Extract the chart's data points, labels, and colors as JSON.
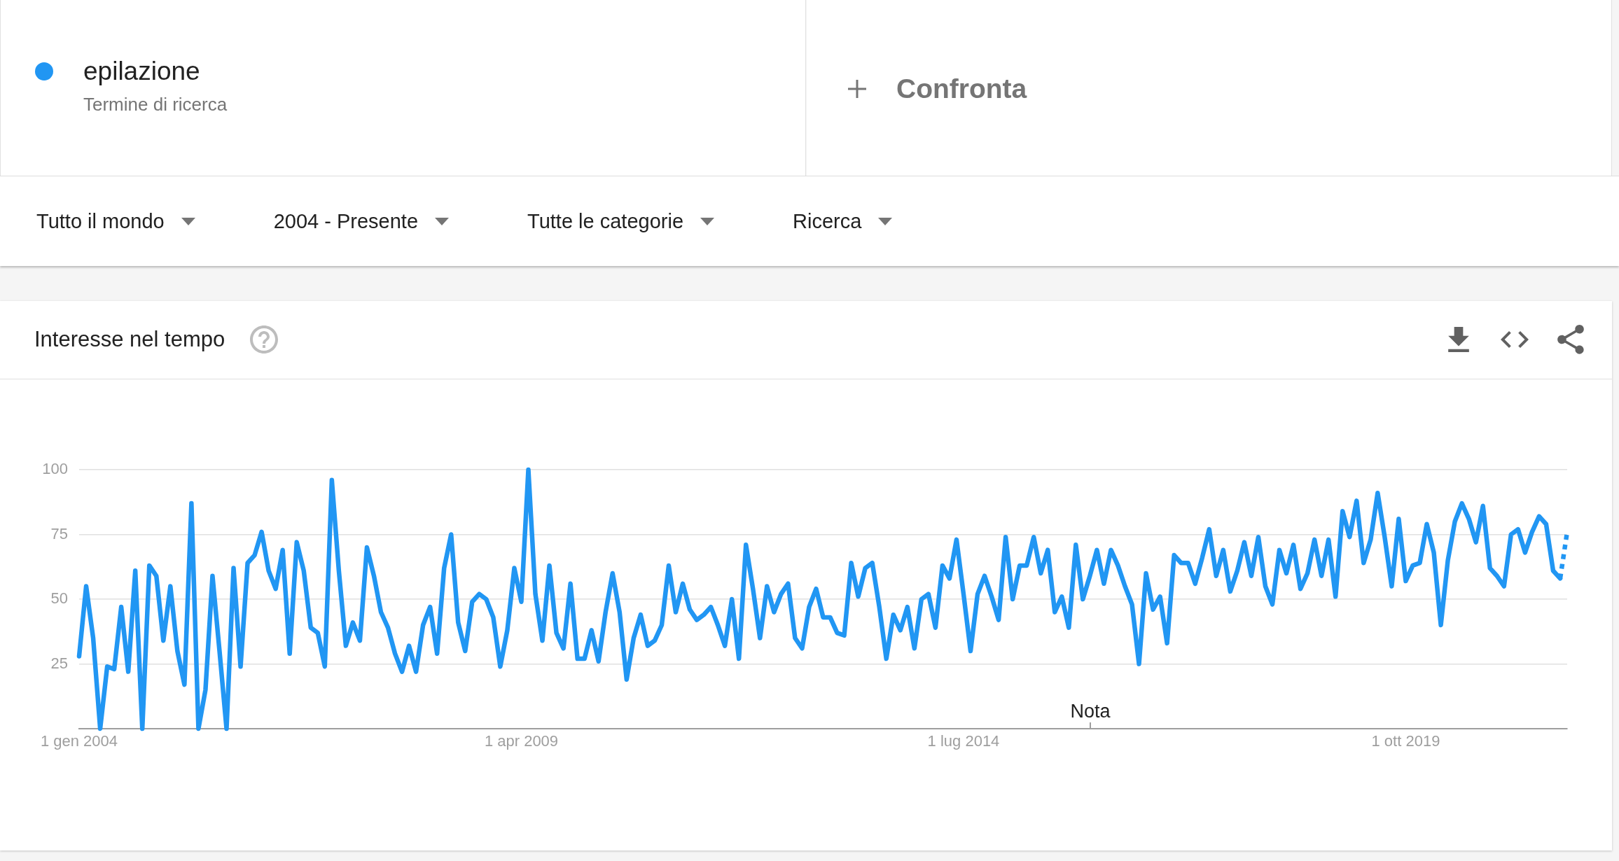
{
  "chart_data": {
    "type": "line",
    "title": "Interesse nel tempo",
    "series": [
      {
        "name": "epilazione",
        "color": "#2196f3",
        "x": [
          "2004-01",
          "2004-02",
          "2004-03",
          "2004-04",
          "2004-05",
          "2004-06",
          "2004-07",
          "2004-08",
          "2004-09",
          "2004-10",
          "2004-11",
          "2004-12",
          "2005-01",
          "2005-02",
          "2005-03",
          "2005-04",
          "2005-05",
          "2005-06",
          "2005-07",
          "2005-08",
          "2005-09",
          "2005-10",
          "2005-11",
          "2005-12",
          "2006-01",
          "2006-02",
          "2006-03",
          "2006-04",
          "2006-05",
          "2006-06",
          "2006-07",
          "2006-08",
          "2006-09",
          "2006-10",
          "2006-11",
          "2006-12",
          "2007-01",
          "2007-02",
          "2007-03",
          "2007-04",
          "2007-05",
          "2007-06",
          "2007-07",
          "2007-08",
          "2007-09",
          "2007-10",
          "2007-11",
          "2007-12",
          "2008-01",
          "2008-02",
          "2008-03",
          "2008-04",
          "2008-05",
          "2008-06",
          "2008-07",
          "2008-08",
          "2008-09",
          "2008-10",
          "2008-11",
          "2008-12",
          "2009-01",
          "2009-02",
          "2009-03",
          "2009-04",
          "2009-05",
          "2009-06",
          "2009-07",
          "2009-08",
          "2009-09",
          "2009-10",
          "2009-11",
          "2009-12",
          "2010-01",
          "2010-02",
          "2010-03",
          "2010-04",
          "2010-05",
          "2010-06",
          "2010-07",
          "2010-08",
          "2010-09",
          "2010-10",
          "2010-11",
          "2010-12",
          "2011-01",
          "2011-02",
          "2011-03",
          "2011-04",
          "2011-05",
          "2011-06",
          "2011-07",
          "2011-08",
          "2011-09",
          "2011-10",
          "2011-11",
          "2011-12",
          "2012-01",
          "2012-02",
          "2012-03",
          "2012-04",
          "2012-05",
          "2012-06",
          "2012-07",
          "2012-08",
          "2012-09",
          "2012-10",
          "2012-11",
          "2012-12",
          "2013-01",
          "2013-02",
          "2013-03",
          "2013-04",
          "2013-05",
          "2013-06",
          "2013-07",
          "2013-08",
          "2013-09",
          "2013-10",
          "2013-11",
          "2013-12",
          "2014-01",
          "2014-02",
          "2014-03",
          "2014-04",
          "2014-05",
          "2014-06",
          "2014-07",
          "2014-08",
          "2014-09",
          "2014-10",
          "2014-11",
          "2014-12",
          "2015-01",
          "2015-02",
          "2015-03",
          "2015-04",
          "2015-05",
          "2015-06",
          "2015-07",
          "2015-08",
          "2015-09",
          "2015-10",
          "2015-11",
          "2015-12",
          "2016-01",
          "2016-02",
          "2016-03",
          "2016-04",
          "2016-05",
          "2016-06",
          "2016-07",
          "2016-08",
          "2016-09",
          "2016-10",
          "2016-11",
          "2016-12",
          "2017-01",
          "2017-02",
          "2017-03",
          "2017-04",
          "2017-05",
          "2017-06",
          "2017-07",
          "2017-08",
          "2017-09",
          "2017-10",
          "2017-11",
          "2017-12",
          "2018-01",
          "2018-02",
          "2018-03",
          "2018-04",
          "2018-05",
          "2018-06",
          "2018-07",
          "2018-08",
          "2018-09",
          "2018-10",
          "2018-11",
          "2018-12",
          "2019-01",
          "2019-02",
          "2019-03",
          "2019-04",
          "2019-05",
          "2019-06",
          "2019-07",
          "2019-08",
          "2019-09",
          "2019-10",
          "2019-11",
          "2019-12",
          "2020-01",
          "2020-02",
          "2020-03",
          "2020-04",
          "2020-05",
          "2020-06",
          "2020-07",
          "2020-08",
          "2020-09",
          "2020-10",
          "2020-11",
          "2020-12",
          "2021-01",
          "2021-02",
          "2021-03",
          "2021-04",
          "2021-05",
          "2021-06",
          "2021-07",
          "2021-08"
        ],
        "values": [
          28,
          55,
          35,
          0,
          24,
          23,
          47,
          22,
          61,
          0,
          63,
          59,
          34,
          55,
          30,
          17,
          87,
          0,
          15,
          59,
          30,
          0,
          62,
          24,
          64,
          67,
          76,
          61,
          54,
          69,
          29,
          72,
          61,
          39,
          37,
          24,
          96,
          61,
          32,
          41,
          34,
          70,
          59,
          45,
          39,
          29,
          22,
          32,
          22,
          40,
          47,
          29,
          62,
          75,
          41,
          30,
          49,
          52,
          50,
          43,
          24,
          38,
          62,
          49,
          100,
          52,
          34,
          63,
          37,
          31,
          56,
          27,
          27,
          38,
          26,
          45,
          60,
          45,
          19,
          35,
          44,
          32,
          34,
          40,
          63,
          45,
          56,
          46,
          42,
          44,
          47,
          40,
          32,
          50,
          27,
          71,
          54,
          35,
          55,
          45,
          52,
          56,
          35,
          31,
          47,
          54,
          43,
          43,
          37,
          36,
          64,
          51,
          62,
          64,
          47,
          27,
          44,
          38,
          47,
          31,
          50,
          52,
          39,
          63,
          58,
          73,
          52,
          30,
          52,
          59,
          51,
          42,
          74,
          50,
          63,
          63,
          74,
          60,
          69,
          45,
          51,
          39,
          71,
          50,
          59,
          69,
          56,
          69,
          63,
          55,
          48,
          25,
          60,
          46,
          51,
          33,
          67,
          64,
          64,
          56,
          66,
          77,
          59,
          69,
          53,
          61,
          72,
          59,
          74,
          55,
          48,
          69,
          60,
          71,
          54,
          60,
          73,
          59,
          73,
          51,
          84,
          74,
          88,
          64,
          73,
          91,
          74,
          55,
          81,
          57,
          63,
          64,
          79,
          68,
          40,
          65,
          80,
          87,
          81,
          72,
          86,
          62,
          59,
          55,
          75,
          77,
          68,
          76,
          82,
          79,
          61,
          58
        ]
      },
      {
        "color": "#2196f3",
        "line_style": "dotted",
        "x": [
          "2021-08",
          "2021-09"
        ],
        "values": [
          58,
          76
        ]
      }
    ],
    "xlim": [
      "2004-01",
      "2021-09"
    ],
    "xticks": [
      {
        "value": "2004-01-01",
        "label": "1 gen 2004"
      },
      {
        "value": "2009-04-01",
        "label": "1 apr 2009"
      },
      {
        "value": "2014-07-01",
        "label": "1 lug 2014"
      },
      {
        "value": "2019-10-01",
        "label": "1 ott 2019"
      }
    ],
    "ylim": [
      0,
      100
    ],
    "yticks": [
      25,
      50,
      75,
      100
    ],
    "grid": "y",
    "legend": "top left",
    "annotations": [
      "Termine di ricerca",
      "Confronta",
      "Tutto il mondo",
      "2004 - Presente",
      "Tutte le categorie",
      "Ricerca",
      "Nota"
    ]
  }
}
